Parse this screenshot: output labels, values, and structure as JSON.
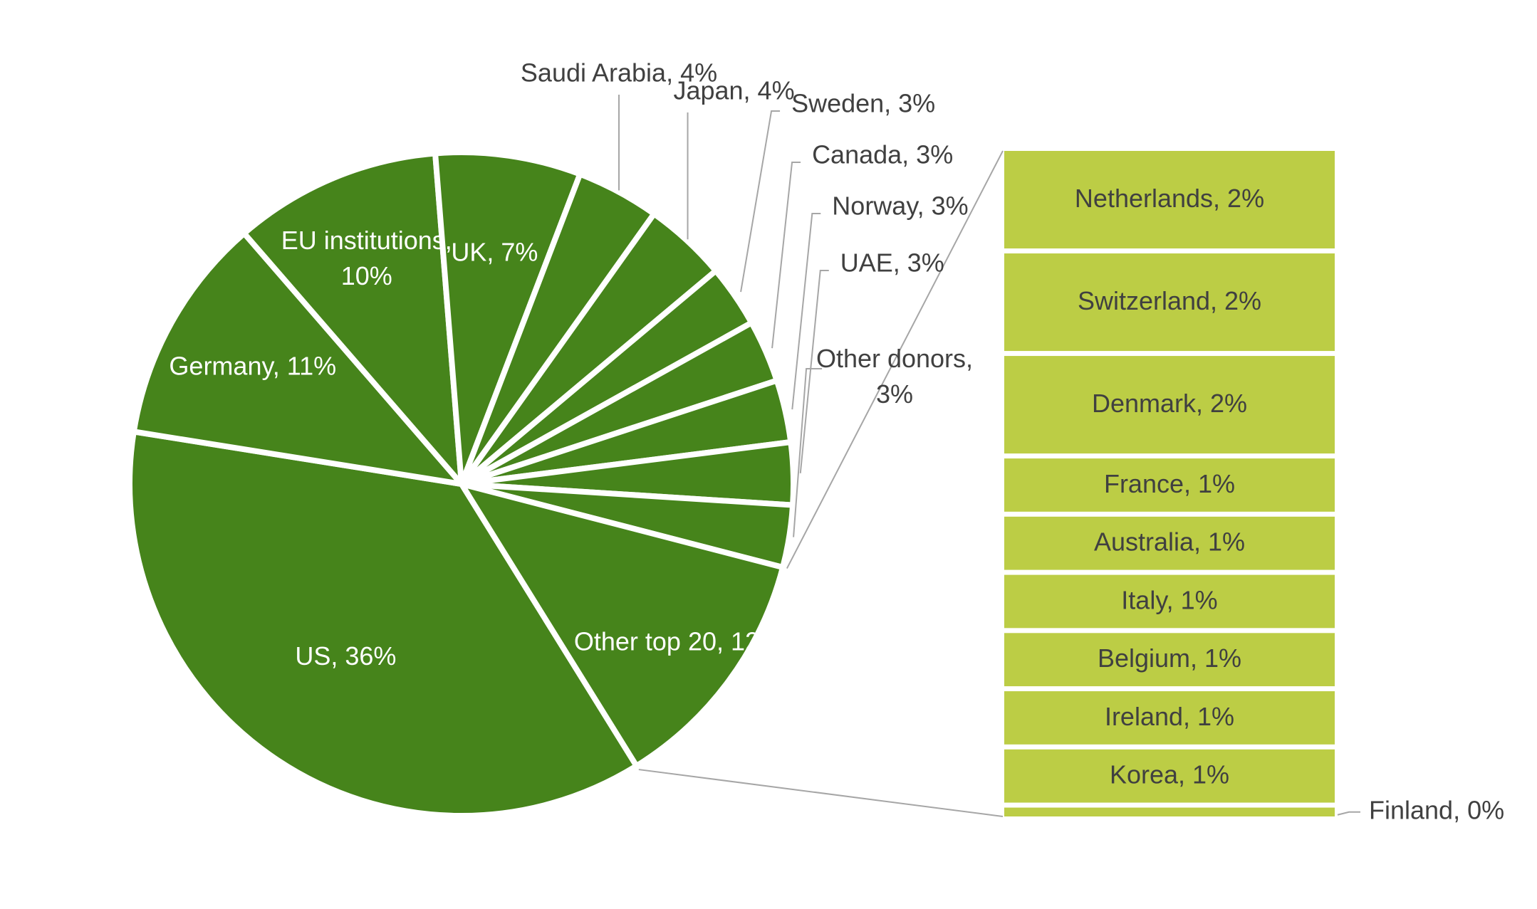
{
  "chart_data": {
    "type": "bar-of-pie",
    "title": "",
    "pie": {
      "slices": [
        {
          "name": "US",
          "value": 36,
          "label": "US, 36%"
        },
        {
          "name": "Germany",
          "value": 11,
          "label": "Germany, 11%"
        },
        {
          "name": "EU institutions",
          "value": 10,
          "label_lines": [
            "EU institutions,",
            "10%"
          ]
        },
        {
          "name": "UK",
          "value": 7,
          "label": "UK, 7%"
        },
        {
          "name": "Saudi Arabia",
          "value": 4,
          "label": "Saudi Arabia, 4%"
        },
        {
          "name": "Japan",
          "value": 4,
          "label": "Japan, 4%"
        },
        {
          "name": "Sweden",
          "value": 3,
          "label": "Sweden, 3%"
        },
        {
          "name": "Canada",
          "value": 3,
          "label": "Canada, 3%"
        },
        {
          "name": "Norway",
          "value": 3,
          "label": "Norway, 3%"
        },
        {
          "name": "UAE",
          "value": 3,
          "label": "UAE, 3%"
        },
        {
          "name": "Other donors",
          "value": 3,
          "label_lines": [
            "Other donors,",
            "3%"
          ]
        },
        {
          "name": "Other top 20",
          "value": 12,
          "label": "Other top 20, 12%"
        }
      ]
    },
    "bar": {
      "source_slice": "Other top 20",
      "items": [
        {
          "name": "Netherlands",
          "value": 2,
          "label": "Netherlands, 2%"
        },
        {
          "name": "Switzerland",
          "value": 2,
          "label": "Switzerland, 2%"
        },
        {
          "name": "Denmark",
          "value": 2,
          "label": "Denmark, 2%"
        },
        {
          "name": "France",
          "value": 1,
          "label": "France, 1%"
        },
        {
          "name": "Australia",
          "value": 1,
          "label": "Australia, 1%"
        },
        {
          "name": "Italy",
          "value": 1,
          "label": "Italy, 1%"
        },
        {
          "name": "Belgium",
          "value": 1,
          "label": "Belgium, 1%"
        },
        {
          "name": "Ireland",
          "value": 1,
          "label": "Ireland, 1%"
        },
        {
          "name": "Korea",
          "value": 1,
          "label": "Korea, 1%"
        },
        {
          "name": "Finland",
          "value": 0,
          "label": "Finland, 0%"
        }
      ]
    },
    "colors": {
      "pie": "#46841b",
      "bar": "#bccd45",
      "separator": "#ffffff",
      "leader": "#a6a6a6",
      "text_dark": "#404040",
      "text_light": "#ffffff"
    }
  }
}
